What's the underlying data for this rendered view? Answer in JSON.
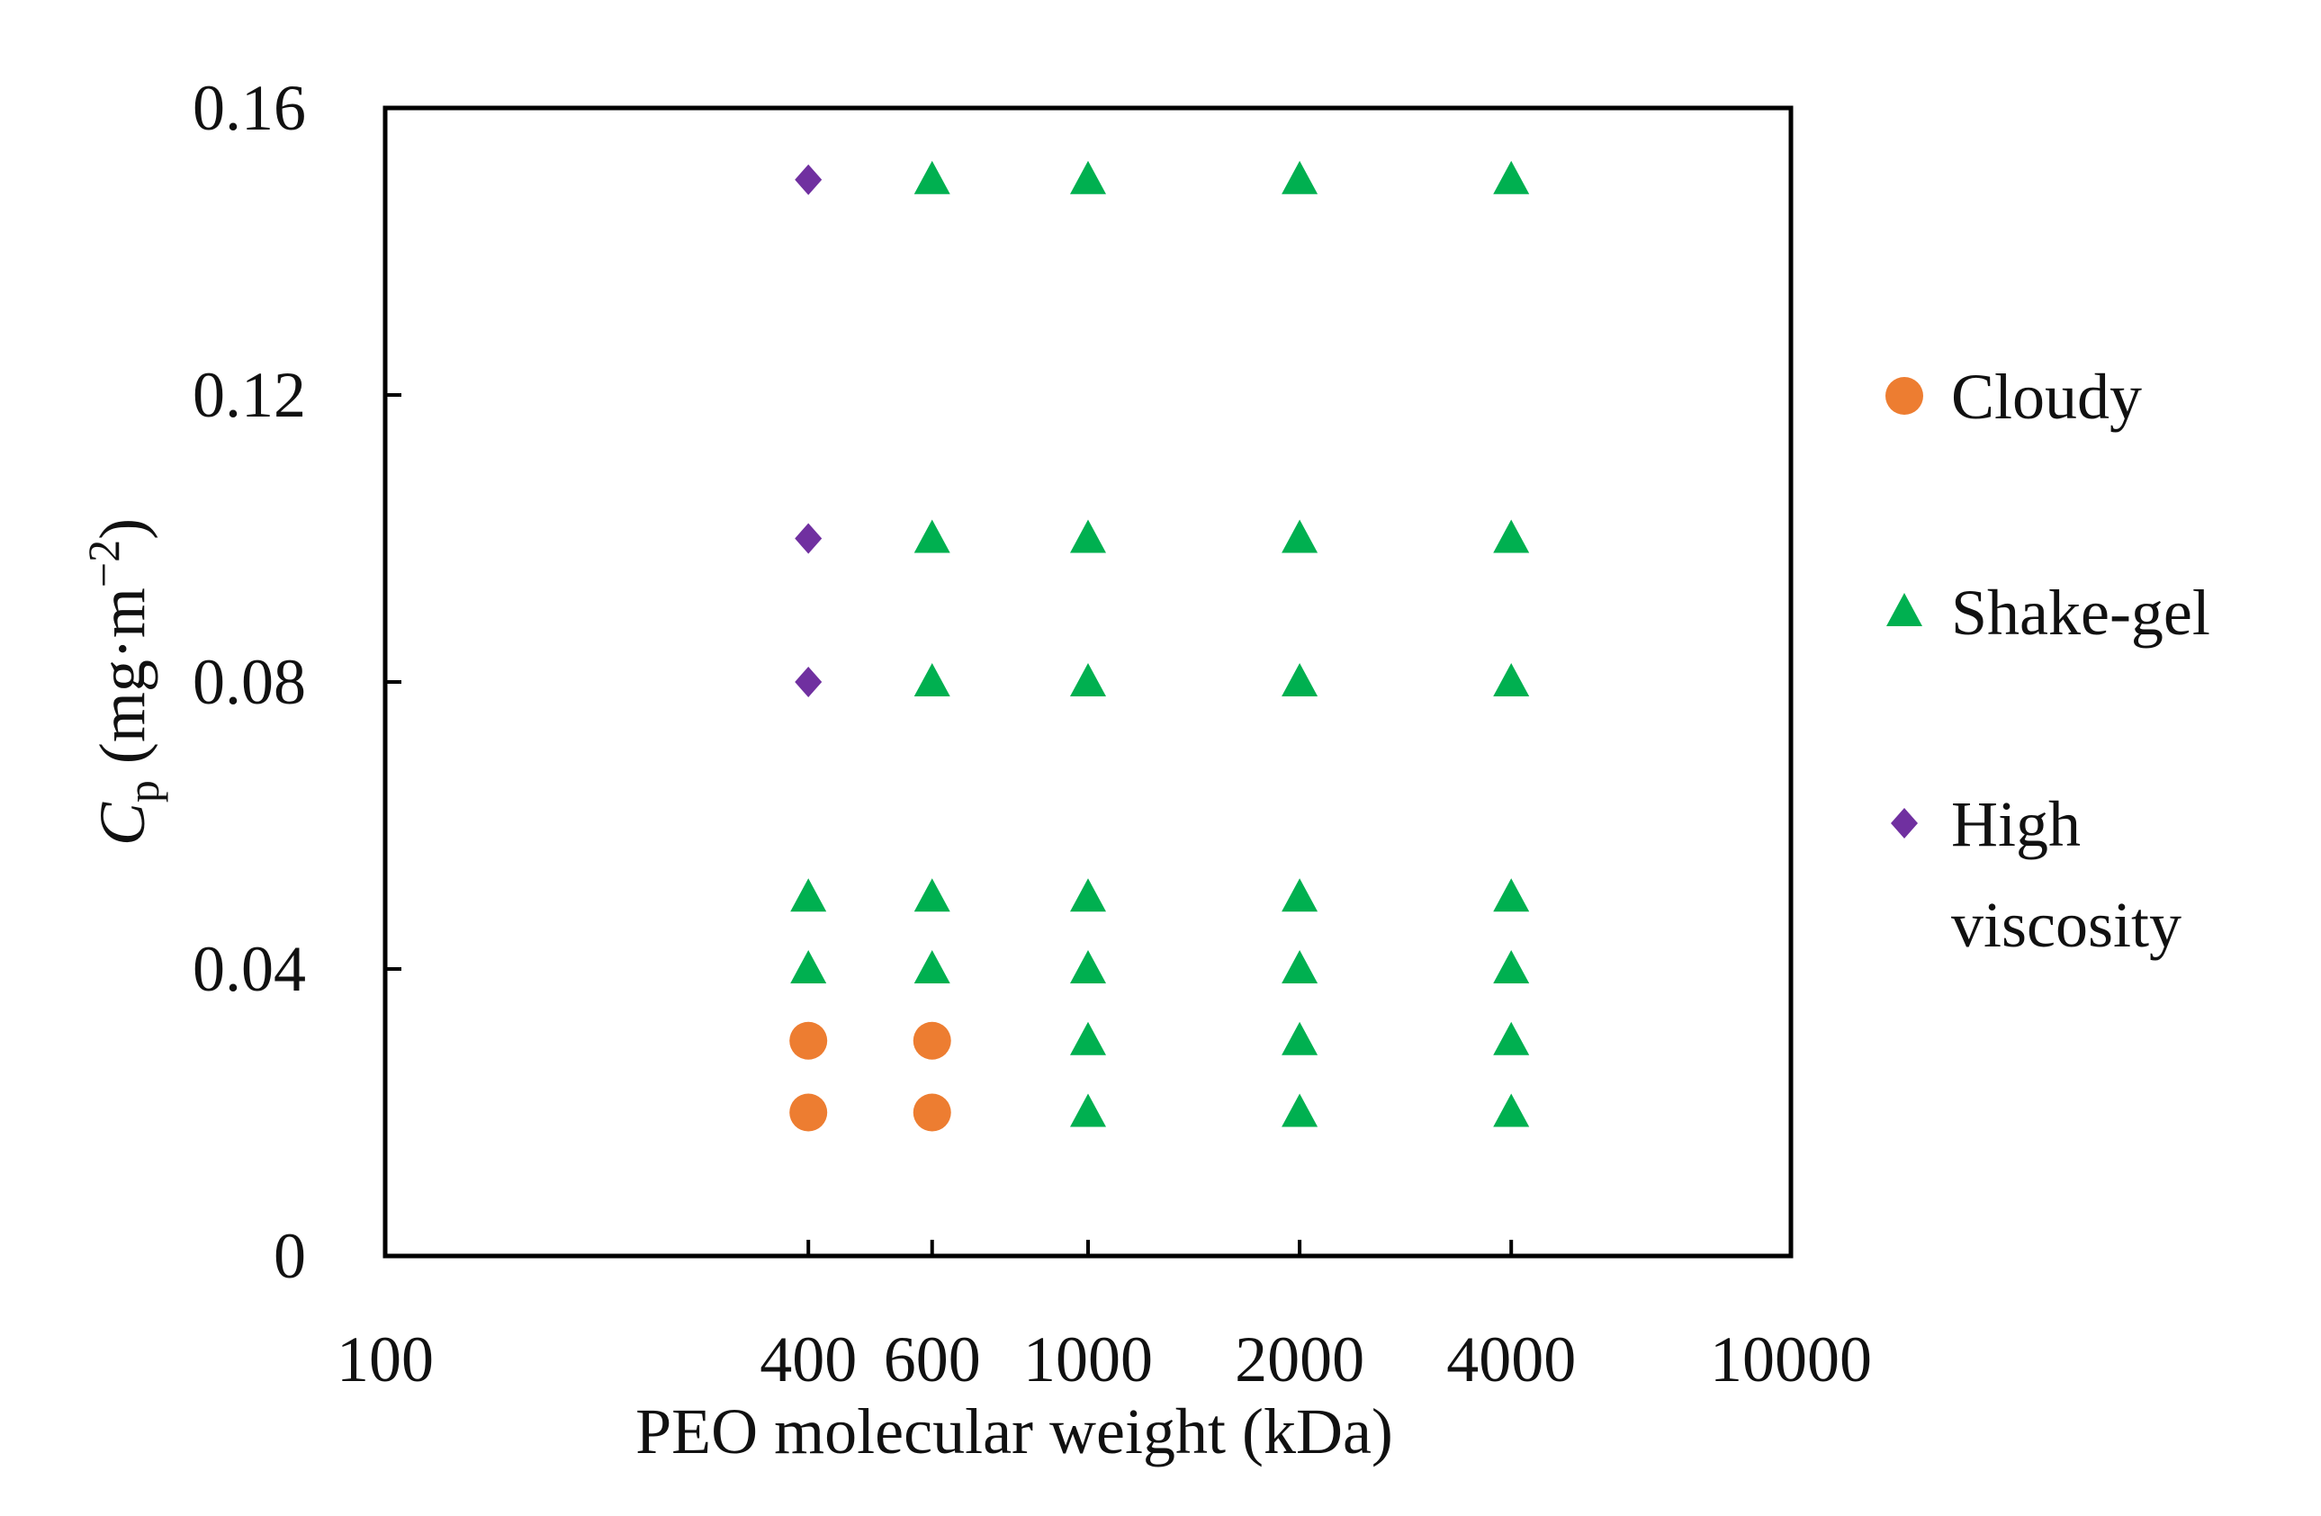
{
  "chart_data": {
    "type": "scatter",
    "xscale": "log",
    "xlim": [
      100,
      10000
    ],
    "ylim": [
      0,
      0.16
    ],
    "xlabel": "PEO molecular weight (kDa)",
    "ylabel": {
      "symbol": "C",
      "subscript": "p",
      "units_open": " (mg·m",
      "units_exp": "−2",
      "units_close": ")"
    },
    "x_ticks": [
      {
        "value": 100,
        "label": "100"
      },
      {
        "value": 400,
        "label": "400"
      },
      {
        "value": 600,
        "label": "600"
      },
      {
        "value": 1000,
        "label": "1000"
      },
      {
        "value": 2000,
        "label": "2000"
      },
      {
        "value": 4000,
        "label": "4000"
      },
      {
        "value": 10000,
        "label": "10000"
      }
    ],
    "y_ticks": [
      {
        "value": 0,
        "label": "0"
      },
      {
        "value": 0.04,
        "label": "0.04"
      },
      {
        "value": 0.08,
        "label": "0.08"
      },
      {
        "value": 0.12,
        "label": "0.12"
      },
      {
        "value": 0.16,
        "label": "0.16"
      }
    ],
    "legend_position": "right",
    "series": [
      {
        "name": "Cloudy",
        "legend_lines": [
          "Cloudy"
        ],
        "marker": "circle",
        "color": "#ED7D31",
        "points": [
          {
            "x": 400,
            "y": 0.02
          },
          {
            "x": 400,
            "y": 0.03
          },
          {
            "x": 600,
            "y": 0.02
          },
          {
            "x": 600,
            "y": 0.03
          }
        ]
      },
      {
        "name": "Shake-gel",
        "legend_lines": [
          "Shake-gel"
        ],
        "marker": "triangle",
        "color": "#00B050",
        "points": [
          {
            "x": 400,
            "y": 0.04
          },
          {
            "x": 400,
            "y": 0.05
          },
          {
            "x": 600,
            "y": 0.04
          },
          {
            "x": 600,
            "y": 0.05
          },
          {
            "x": 600,
            "y": 0.08
          },
          {
            "x": 600,
            "y": 0.1
          },
          {
            "x": 600,
            "y": 0.15
          },
          {
            "x": 1000,
            "y": 0.02
          },
          {
            "x": 1000,
            "y": 0.03
          },
          {
            "x": 1000,
            "y": 0.04
          },
          {
            "x": 1000,
            "y": 0.05
          },
          {
            "x": 1000,
            "y": 0.08
          },
          {
            "x": 1000,
            "y": 0.1
          },
          {
            "x": 1000,
            "y": 0.15
          },
          {
            "x": 2000,
            "y": 0.02
          },
          {
            "x": 2000,
            "y": 0.03
          },
          {
            "x": 2000,
            "y": 0.04
          },
          {
            "x": 2000,
            "y": 0.05
          },
          {
            "x": 2000,
            "y": 0.08
          },
          {
            "x": 2000,
            "y": 0.1
          },
          {
            "x": 2000,
            "y": 0.15
          },
          {
            "x": 4000,
            "y": 0.02
          },
          {
            "x": 4000,
            "y": 0.03
          },
          {
            "x": 4000,
            "y": 0.04
          },
          {
            "x": 4000,
            "y": 0.05
          },
          {
            "x": 4000,
            "y": 0.08
          },
          {
            "x": 4000,
            "y": 0.1
          },
          {
            "x": 4000,
            "y": 0.15
          }
        ]
      },
      {
        "name": "High viscosity",
        "legend_lines": [
          "High",
          "viscosity"
        ],
        "marker": "diamond",
        "color": "#7030A0",
        "points": [
          {
            "x": 400,
            "y": 0.08
          },
          {
            "x": 400,
            "y": 0.1
          },
          {
            "x": 400,
            "y": 0.15
          }
        ]
      }
    ]
  }
}
